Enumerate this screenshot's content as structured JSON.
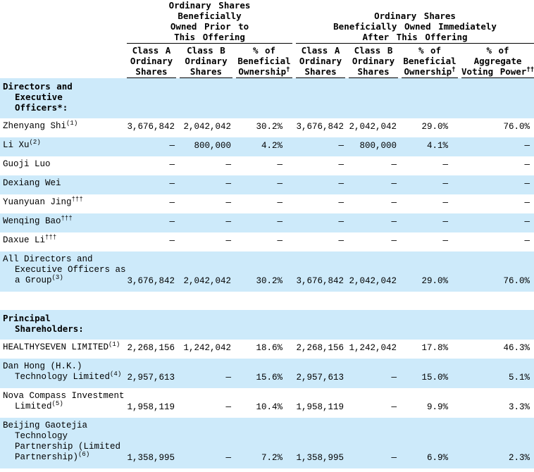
{
  "table": {
    "shade_color": "#cdeafa",
    "dash": "—",
    "groups": [
      {
        "name": "group-header-prior-offering",
        "lines": [
          "Ordinary Shares",
          "Beneficially",
          "Owned Prior to",
          "This Offering"
        ]
      },
      {
        "name": "group-header-after-offering",
        "lines": [
          "Ordinary Shares",
          "Beneficially Owned Immediately",
          "After This Offering"
        ]
      }
    ],
    "columns": [
      {
        "key": "classA-prior",
        "lines": [
          "Class A",
          "Ordinary",
          "Shares"
        ],
        "sup": ""
      },
      {
        "key": "classB-prior",
        "lines": [
          "Class B",
          "Ordinary",
          "Shares"
        ],
        "sup": ""
      },
      {
        "key": "pct-beneficial-prior",
        "lines": [
          "% of",
          "Beneficial",
          "Ownership"
        ],
        "sup": "†"
      },
      {
        "key": "classA-after",
        "lines": [
          "Class A",
          "Ordinary",
          "Shares"
        ],
        "sup": ""
      },
      {
        "key": "classB-after",
        "lines": [
          "Class B",
          "Ordinary",
          "Shares"
        ],
        "sup": ""
      },
      {
        "key": "pct-beneficial-after",
        "lines": [
          "% of",
          "Beneficial",
          "Ownership"
        ],
        "sup": "†"
      },
      {
        "key": "pct-voting-after",
        "lines": [
          "% of",
          "Aggregate",
          "Voting Power"
        ],
        "sup": "††"
      }
    ],
    "rows": [
      {
        "name_lines": [
          "Directors and",
          "Executive",
          "Officers*:"
        ],
        "sup": "",
        "bold": true,
        "shaded": true,
        "values": [
          "",
          "",
          "",
          "",
          "",
          "",
          ""
        ]
      },
      {
        "name_lines": [
          "Zhenyang Shi"
        ],
        "sup": "(1)",
        "bold": false,
        "shaded": false,
        "values": [
          "3,676,842",
          "2,042,042",
          "30.2%",
          "3,676,842",
          "2,042,042",
          "29.0%",
          "76.0%"
        ]
      },
      {
        "name_lines": [
          "Li Xu"
        ],
        "sup": "(2)",
        "bold": false,
        "shaded": true,
        "values": [
          "—",
          "800,000",
          "4.2%",
          "—",
          "800,000",
          "4.1%",
          "—"
        ]
      },
      {
        "name_lines": [
          "Guoji Luo"
        ],
        "sup": "",
        "bold": false,
        "shaded": false,
        "values": [
          "—",
          "—",
          "—",
          "—",
          "—",
          "—",
          "—"
        ]
      },
      {
        "name_lines": [
          "Dexiang Wei"
        ],
        "sup": "",
        "bold": false,
        "shaded": true,
        "values": [
          "—",
          "—",
          "—",
          "—",
          "—",
          "—",
          "—"
        ]
      },
      {
        "name_lines": [
          "Yuanyuan Jing"
        ],
        "sup": "†††",
        "bold": false,
        "shaded": false,
        "values": [
          "—",
          "—",
          "—",
          "—",
          "—",
          "—",
          "—"
        ]
      },
      {
        "name_lines": [
          "Wenqing Bao"
        ],
        "sup": "†††",
        "bold": false,
        "shaded": true,
        "values": [
          "—",
          "—",
          "—",
          "—",
          "—",
          "—",
          "—"
        ]
      },
      {
        "name_lines": [
          "Daxue Li"
        ],
        "sup": "†††",
        "bold": false,
        "shaded": false,
        "values": [
          "—",
          "—",
          "—",
          "—",
          "—",
          "—",
          "—"
        ]
      },
      {
        "name_lines": [
          "All Directors and",
          "Executive Officers as",
          "a Group"
        ],
        "sup": "(3)",
        "bold": false,
        "shaded": true,
        "values": [
          "3,676,842",
          "2,042,042",
          "30.2%",
          "3,676,842",
          "2,042,042",
          "29.0%",
          "76.0%"
        ]
      },
      {
        "spacer": true
      },
      {
        "name_lines": [
          "Principal",
          "Shareholders:"
        ],
        "sup": "",
        "bold": true,
        "shaded": true,
        "values": [
          "",
          "",
          "",
          "",
          "",
          "",
          ""
        ]
      },
      {
        "name_lines": [
          "HEALTHYSEVEN LIMITED"
        ],
        "sup": "(1)",
        "bold": false,
        "shaded": false,
        "values": [
          "2,268,156",
          "1,242,042",
          "18.6%",
          "2,268,156",
          "1,242,042",
          "17.8%",
          "46.3%"
        ]
      },
      {
        "name_lines": [
          "Dan Hong (H.K.)",
          "Technology Limited"
        ],
        "sup": "(4)",
        "bold": false,
        "shaded": true,
        "values": [
          "2,957,613",
          "—",
          "15.6%",
          "2,957,613",
          "—",
          "15.0%",
          "5.1%"
        ]
      },
      {
        "name_lines": [
          "Nova Compass Investment",
          "Limited"
        ],
        "sup": "(5)",
        "bold": false,
        "shaded": false,
        "values": [
          "1,958,119",
          "—",
          "10.4%",
          "1,958,119",
          "—",
          "9.9%",
          "3.3%"
        ]
      },
      {
        "name_lines": [
          "Beijing Gaotejia",
          "Technology",
          "Partnership (Limited",
          "Partnership)"
        ],
        "sup": "(6)",
        "bold": false,
        "shaded": true,
        "values": [
          "1,358,995",
          "—",
          "7.2%",
          "1,358,995",
          "—",
          "6.9%",
          "2.3%"
        ]
      }
    ]
  }
}
